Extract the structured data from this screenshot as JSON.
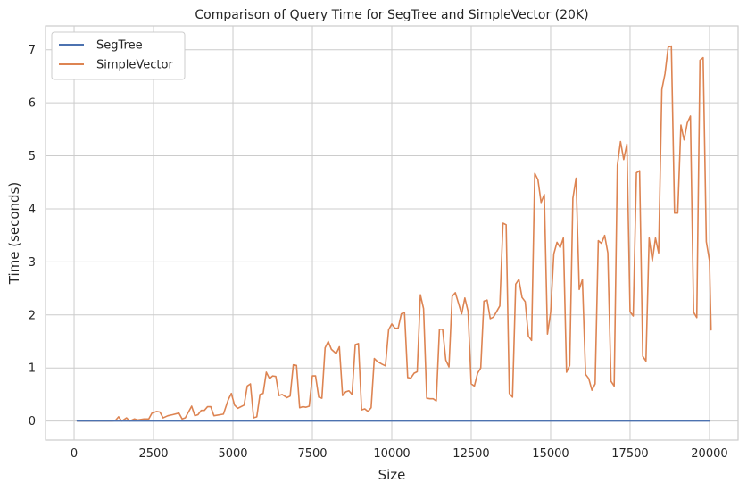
{
  "chart_data": {
    "type": "line",
    "title": "Comparison of Query Time for SegTree and SimpleVector (20K)",
    "xlabel": "Size",
    "ylabel": "Time (seconds)",
    "xlim": [
      -900,
      20900
    ],
    "ylim": [
      -0.36,
      7.45
    ],
    "xticks": [
      0,
      2500,
      5000,
      7500,
      10000,
      12500,
      15000,
      17500,
      20000
    ],
    "xtick_labels": [
      "0",
      "2500",
      "5000",
      "7500",
      "10000",
      "12500",
      "15000",
      "17500",
      "20000"
    ],
    "yticks": [
      0,
      1,
      2,
      3,
      4,
      5,
      6,
      7
    ],
    "ytick_labels": [
      "0",
      "1",
      "2",
      "3",
      "4",
      "5",
      "6",
      "7"
    ],
    "grid": true,
    "legend_position": "top-left",
    "series": [
      {
        "name": "SegTree",
        "color": "#4c72b0",
        "points": [
          [
            100,
            0.0
          ],
          [
            20000,
            0.0
          ]
        ]
      },
      {
        "name": "SimpleVector",
        "color": "#dd8452",
        "points": [
          [
            100,
            0.0
          ],
          [
            1200,
            0.0
          ],
          [
            1300,
            0.01
          ],
          [
            1400,
            0.08
          ],
          [
            1500,
            0.0
          ],
          [
            1650,
            0.06
          ],
          [
            1750,
            0.0
          ],
          [
            1900,
            0.04
          ],
          [
            2000,
            0.02
          ],
          [
            2200,
            0.04
          ],
          [
            2350,
            0.04
          ],
          [
            2450,
            0.15
          ],
          [
            2600,
            0.18
          ],
          [
            2700,
            0.17
          ],
          [
            2800,
            0.06
          ],
          [
            2950,
            0.1
          ],
          [
            3100,
            0.12
          ],
          [
            3300,
            0.15
          ],
          [
            3400,
            0.04
          ],
          [
            3500,
            0.06
          ],
          [
            3700,
            0.28
          ],
          [
            3800,
            0.1
          ],
          [
            3900,
            0.12
          ],
          [
            4000,
            0.2
          ],
          [
            4100,
            0.2
          ],
          [
            4200,
            0.27
          ],
          [
            4300,
            0.27
          ],
          [
            4400,
            0.1
          ],
          [
            4700,
            0.13
          ],
          [
            4850,
            0.4
          ],
          [
            4950,
            0.52
          ],
          [
            5050,
            0.3
          ],
          [
            5150,
            0.24
          ],
          [
            5350,
            0.3
          ],
          [
            5450,
            0.66
          ],
          [
            5550,
            0.7
          ],
          [
            5650,
            0.06
          ],
          [
            5750,
            0.08
          ],
          [
            5850,
            0.5
          ],
          [
            5950,
            0.52
          ],
          [
            6050,
            0.92
          ],
          [
            6150,
            0.8
          ],
          [
            6250,
            0.85
          ],
          [
            6350,
            0.84
          ],
          [
            6450,
            0.48
          ],
          [
            6550,
            0.5
          ],
          [
            6700,
            0.44
          ],
          [
            6800,
            0.47
          ],
          [
            6900,
            1.06
          ],
          [
            7000,
            1.05
          ],
          [
            7100,
            0.25
          ],
          [
            7200,
            0.27
          ],
          [
            7300,
            0.26
          ],
          [
            7400,
            0.28
          ],
          [
            7500,
            0.85
          ],
          [
            7600,
            0.85
          ],
          [
            7700,
            0.45
          ],
          [
            7800,
            0.43
          ],
          [
            7900,
            1.38
          ],
          [
            8000,
            1.5
          ],
          [
            8100,
            1.35
          ],
          [
            8250,
            1.27
          ],
          [
            8350,
            1.4
          ],
          [
            8450,
            0.48
          ],
          [
            8550,
            0.55
          ],
          [
            8650,
            0.57
          ],
          [
            8750,
            0.5
          ],
          [
            8850,
            1.44
          ],
          [
            8950,
            1.46
          ],
          [
            9050,
            0.21
          ],
          [
            9150,
            0.23
          ],
          [
            9250,
            0.18
          ],
          [
            9350,
            0.25
          ],
          [
            9450,
            1.18
          ],
          [
            9550,
            1.12
          ],
          [
            9700,
            1.07
          ],
          [
            9800,
            1.04
          ],
          [
            9900,
            1.72
          ],
          [
            10000,
            1.83
          ],
          [
            10100,
            1.75
          ],
          [
            10200,
            1.75
          ],
          [
            10300,
            2.02
          ],
          [
            10400,
            2.05
          ],
          [
            10500,
            0.82
          ],
          [
            10600,
            0.81
          ],
          [
            10700,
            0.9
          ],
          [
            10800,
            0.93
          ],
          [
            10900,
            2.38
          ],
          [
            11000,
            2.12
          ],
          [
            11100,
            0.43
          ],
          [
            11200,
            0.42
          ],
          [
            11300,
            0.42
          ],
          [
            11400,
            0.38
          ],
          [
            11500,
            1.73
          ],
          [
            11600,
            1.73
          ],
          [
            11700,
            1.15
          ],
          [
            11800,
            1.02
          ],
          [
            11900,
            2.35
          ],
          [
            12000,
            2.42
          ],
          [
            12100,
            2.22
          ],
          [
            12200,
            2.02
          ],
          [
            12300,
            2.32
          ],
          [
            12400,
            2.07
          ],
          [
            12500,
            0.7
          ],
          [
            12600,
            0.66
          ],
          [
            12700,
            0.9
          ],
          [
            12800,
            1.0
          ],
          [
            12900,
            2.26
          ],
          [
            13000,
            2.28
          ],
          [
            13100,
            1.93
          ],
          [
            13200,
            1.96
          ],
          [
            13400,
            2.17
          ],
          [
            13500,
            3.73
          ],
          [
            13600,
            3.7
          ],
          [
            13700,
            0.52
          ],
          [
            13800,
            0.45
          ],
          [
            13900,
            2.58
          ],
          [
            14000,
            2.67
          ],
          [
            14100,
            2.33
          ],
          [
            14200,
            2.25
          ],
          [
            14300,
            1.6
          ],
          [
            14400,
            1.52
          ],
          [
            14500,
            4.67
          ],
          [
            14600,
            4.55
          ],
          [
            14700,
            4.12
          ],
          [
            14800,
            4.27
          ],
          [
            14900,
            1.64
          ],
          [
            15000,
            2.05
          ],
          [
            15100,
            3.15
          ],
          [
            15200,
            3.37
          ],
          [
            15300,
            3.27
          ],
          [
            15400,
            3.45
          ],
          [
            15500,
            0.92
          ],
          [
            15600,
            1.05
          ],
          [
            15700,
            4.2
          ],
          [
            15800,
            4.58
          ],
          [
            15900,
            2.48
          ],
          [
            16000,
            2.67
          ],
          [
            16100,
            0.88
          ],
          [
            16200,
            0.8
          ],
          [
            16300,
            0.58
          ],
          [
            16400,
            0.7
          ],
          [
            16500,
            3.4
          ],
          [
            16600,
            3.35
          ],
          [
            16700,
            3.5
          ],
          [
            16800,
            3.17
          ],
          [
            16900,
            0.75
          ],
          [
            17000,
            0.66
          ],
          [
            17100,
            4.82
          ],
          [
            17200,
            5.27
          ],
          [
            17300,
            4.93
          ],
          [
            17400,
            5.22
          ],
          [
            17500,
            2.06
          ],
          [
            17600,
            1.98
          ],
          [
            17700,
            4.68
          ],
          [
            17800,
            4.72
          ],
          [
            17900,
            1.22
          ],
          [
            18000,
            1.13
          ],
          [
            18100,
            3.45
          ],
          [
            18200,
            3.02
          ],
          [
            18300,
            3.45
          ],
          [
            18400,
            3.17
          ],
          [
            18500,
            6.25
          ],
          [
            18600,
            6.55
          ],
          [
            18700,
            7.05
          ],
          [
            18800,
            7.07
          ],
          [
            18900,
            3.92
          ],
          [
            19000,
            3.92
          ],
          [
            19100,
            5.58
          ],
          [
            19200,
            5.3
          ],
          [
            19300,
            5.62
          ],
          [
            19400,
            5.75
          ],
          [
            19500,
            2.05
          ],
          [
            19600,
            1.95
          ],
          [
            19700,
            6.8
          ],
          [
            19800,
            6.85
          ],
          [
            19900,
            3.38
          ],
          [
            20000,
            3.02
          ],
          [
            20050,
            1.72
          ]
        ]
      }
    ]
  }
}
